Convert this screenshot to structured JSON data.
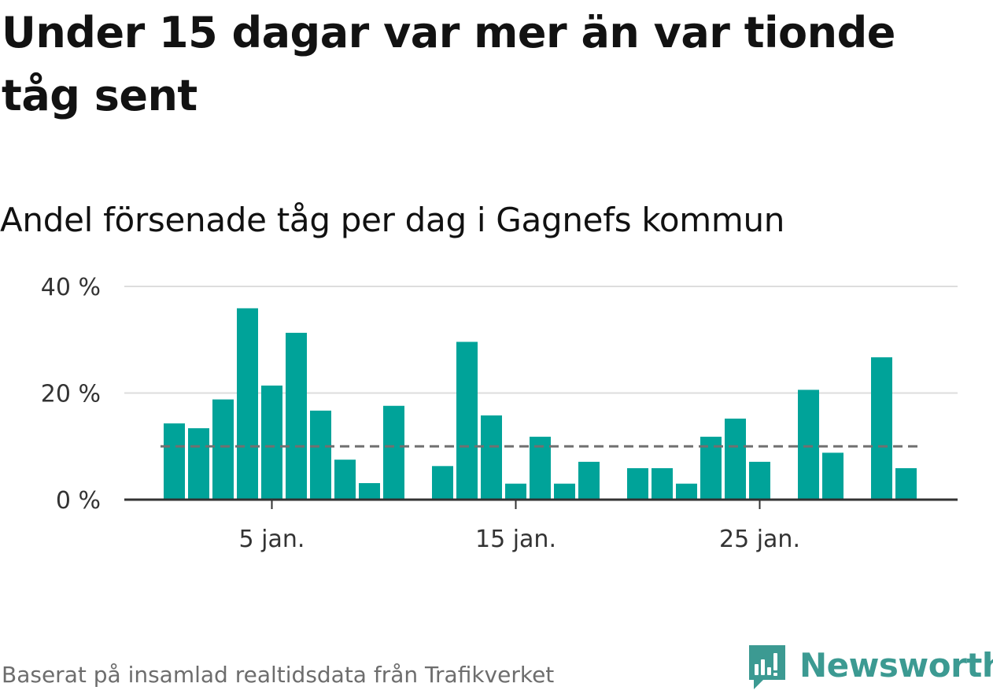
{
  "title": "Under 15 dagar var mer än var tionde tåg sent",
  "subtitle": "Andel försenade tåg per dag i Gagnefs kommun",
  "footer": "Baserat på insamlad realtidsdata från Trafikverket",
  "logo": {
    "text": "Newsworthy",
    "icon": "newsworthy-logo-icon",
    "color": "#3c9a92"
  },
  "colors": {
    "bar": "#00a399",
    "reference_line": "#707070",
    "gridline": "#dddddd",
    "axis": "#333333"
  },
  "chart_data": {
    "type": "bar",
    "x": [
      1,
      2,
      3,
      4,
      5,
      6,
      7,
      8,
      9,
      10,
      11,
      12,
      13,
      14,
      15,
      16,
      17,
      18,
      19,
      20,
      21,
      22,
      23,
      24,
      25,
      26,
      27,
      28,
      29,
      30,
      31
    ],
    "values": [
      14.3,
      13.4,
      18.8,
      35.9,
      21.4,
      31.3,
      16.7,
      7.5,
      3.1,
      17.6,
      null,
      6.3,
      29.6,
      15.8,
      3.0,
      11.8,
      3.0,
      7.1,
      null,
      5.9,
      5.9,
      3.0,
      11.8,
      15.2,
      7.1,
      null,
      20.6,
      8.8,
      null,
      26.7,
      5.9
    ],
    "unit": "%",
    "xticks": [
      {
        "x": 5,
        "label": "5 jan."
      },
      {
        "x": 15,
        "label": "15 jan."
      },
      {
        "x": 25,
        "label": "25 jan."
      }
    ],
    "yticks": [
      {
        "value": 0,
        "label": "0 %"
      },
      {
        "value": 20,
        "label": "20 %"
      },
      {
        "value": 40,
        "label": "40 %"
      }
    ],
    "ylim": [
      0,
      40
    ],
    "reference_line": {
      "value": 10,
      "style": "dashed"
    },
    "grid": true,
    "legend": "none"
  }
}
